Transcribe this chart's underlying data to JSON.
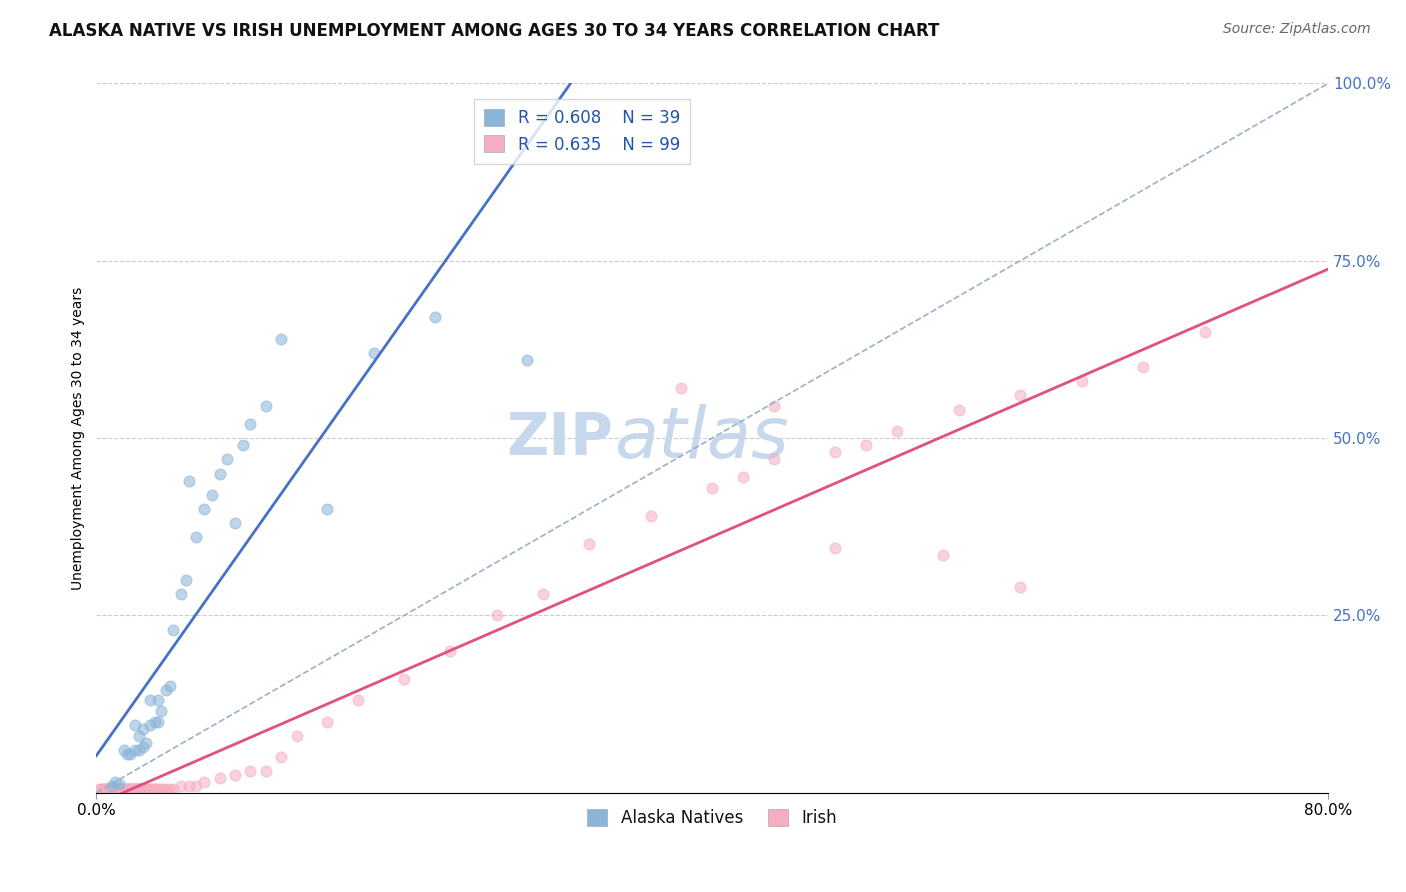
{
  "title": "ALASKA NATIVE VS IRISH UNEMPLOYMENT AMONG AGES 30 TO 34 YEARS CORRELATION CHART",
  "source": "Source: ZipAtlas.com",
  "ylabel": "Unemployment Among Ages 30 to 34 years",
  "xmin": 0.0,
  "xmax": 0.8,
  "ymin": 0.0,
  "ymax": 1.0,
  "xtick_labels": [
    "0.0%",
    "80.0%"
  ],
  "ytick_labels": [
    "",
    "25.0%",
    "50.0%",
    "75.0%",
    "100.0%"
  ],
  "alaska_R": 0.608,
  "alaska_N": 39,
  "irish_R": 0.635,
  "irish_N": 99,
  "alaska_color": "#8ab4d8",
  "irish_color": "#f5aec0",
  "alaska_line_color": "#4472c4",
  "irish_line_color": "#e05080",
  "ref_line_color": "#9ab0cc",
  "background_color": "#ffffff",
  "watermark_zip": "ZIP",
  "watermark_atlas": "atlas",
  "legend_label_alaska": "Alaska Natives",
  "legend_label_irish": "Irish",
  "alaska_x": [
    0.01,
    0.012,
    0.015,
    0.018,
    0.02,
    0.022,
    0.025,
    0.025,
    0.028,
    0.028,
    0.03,
    0.03,
    0.032,
    0.035,
    0.035,
    0.038,
    0.04,
    0.04,
    0.042,
    0.045,
    0.048,
    0.05,
    0.055,
    0.058,
    0.06,
    0.065,
    0.07,
    0.075,
    0.08,
    0.085,
    0.09,
    0.095,
    0.1,
    0.11,
    0.12,
    0.15,
    0.18,
    0.22,
    0.28
  ],
  "alaska_y": [
    0.01,
    0.015,
    0.012,
    0.06,
    0.055,
    0.055,
    0.06,
    0.095,
    0.06,
    0.08,
    0.065,
    0.09,
    0.07,
    0.095,
    0.13,
    0.1,
    0.1,
    0.13,
    0.115,
    0.145,
    0.15,
    0.23,
    0.28,
    0.3,
    0.44,
    0.36,
    0.4,
    0.42,
    0.45,
    0.47,
    0.38,
    0.49,
    0.52,
    0.545,
    0.64,
    0.4,
    0.62,
    0.67,
    0.61
  ],
  "irish_x": [
    0.002,
    0.003,
    0.004,
    0.005,
    0.005,
    0.006,
    0.006,
    0.007,
    0.007,
    0.008,
    0.008,
    0.009,
    0.009,
    0.01,
    0.01,
    0.01,
    0.011,
    0.011,
    0.012,
    0.012,
    0.013,
    0.013,
    0.014,
    0.014,
    0.015,
    0.015,
    0.016,
    0.016,
    0.017,
    0.017,
    0.018,
    0.018,
    0.019,
    0.019,
    0.02,
    0.02,
    0.021,
    0.021,
    0.022,
    0.022,
    0.023,
    0.023,
    0.024,
    0.024,
    0.025,
    0.025,
    0.026,
    0.026,
    0.027,
    0.027,
    0.028,
    0.028,
    0.029,
    0.029,
    0.03,
    0.03,
    0.031,
    0.031,
    0.032,
    0.033,
    0.034,
    0.035,
    0.036,
    0.037,
    0.038,
    0.039,
    0.04,
    0.042,
    0.044,
    0.046,
    0.048,
    0.05,
    0.055,
    0.06,
    0.065,
    0.07,
    0.08,
    0.09,
    0.1,
    0.11,
    0.12,
    0.13,
    0.15,
    0.17,
    0.2,
    0.23,
    0.26,
    0.29,
    0.32,
    0.36,
    0.4,
    0.44,
    0.48,
    0.52,
    0.56,
    0.6,
    0.64,
    0.68,
    0.72
  ],
  "irish_y": [
    0.005,
    0.005,
    0.005,
    0.005,
    0.005,
    0.005,
    0.005,
    0.005,
    0.005,
    0.005,
    0.005,
    0.005,
    0.005,
    0.005,
    0.005,
    0.005,
    0.005,
    0.005,
    0.005,
    0.005,
    0.005,
    0.005,
    0.005,
    0.005,
    0.005,
    0.005,
    0.005,
    0.005,
    0.005,
    0.005,
    0.005,
    0.005,
    0.005,
    0.005,
    0.005,
    0.005,
    0.005,
    0.005,
    0.005,
    0.005,
    0.005,
    0.005,
    0.005,
    0.005,
    0.005,
    0.005,
    0.005,
    0.005,
    0.005,
    0.005,
    0.005,
    0.005,
    0.005,
    0.005,
    0.005,
    0.005,
    0.005,
    0.005,
    0.005,
    0.005,
    0.005,
    0.005,
    0.005,
    0.005,
    0.005,
    0.005,
    0.005,
    0.005,
    0.005,
    0.005,
    0.005,
    0.005,
    0.01,
    0.01,
    0.01,
    0.015,
    0.02,
    0.025,
    0.03,
    0.03,
    0.05,
    0.08,
    0.1,
    0.13,
    0.16,
    0.2,
    0.25,
    0.28,
    0.35,
    0.39,
    0.43,
    0.47,
    0.48,
    0.51,
    0.54,
    0.56,
    0.58,
    0.6,
    0.65
  ],
  "irish_extra_x": [
    0.38,
    0.42,
    0.44,
    0.48,
    0.5,
    0.55,
    0.6
  ],
  "irish_extra_y": [
    0.57,
    0.445,
    0.545,
    0.345,
    0.49,
    0.335,
    0.29
  ],
  "grid_color": "#cccccc",
  "title_fontsize": 12,
  "axis_label_fontsize": 10,
  "tick_fontsize": 11,
  "source_fontsize": 10,
  "legend_fontsize": 12,
  "watermark_fontsize_zip": 42,
  "watermark_fontsize_atlas": 52,
  "watermark_color": "#c8d8ec",
  "marker_size": 60,
  "marker_alpha": 0.55,
  "line_width": 2.0
}
